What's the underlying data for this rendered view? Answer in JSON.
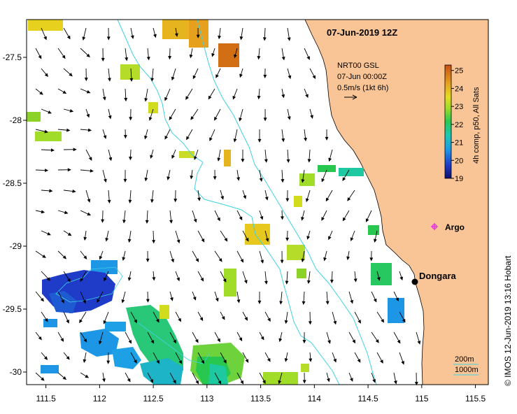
{
  "map": {
    "title": "07-Jun-2019 12Z",
    "lon_ticks": [
      "111.5",
      "112",
      "112.5",
      "113",
      "113.5",
      "114",
      "114.5",
      "115",
      "115.5"
    ],
    "lat_ticks": [
      "-27.5",
      "-28",
      "-28.5",
      "-29",
      "-29.5",
      "-30"
    ],
    "extent": {
      "lon_min": 111.32,
      "lon_max": 115.62,
      "lat_min": -30.1,
      "lat_max": -27.2
    },
    "colors": {
      "land": "#f9c596",
      "ocean": "#ffffff",
      "isobath": "#3fd2e0",
      "argo": "#e030e0"
    }
  },
  "annotation": {
    "line1": "NRT00 GSL",
    "line2": "07-Jun 00:00Z",
    "line3": "0.5m/s (1kt 6h)"
  },
  "colorbar": {
    "ticks": [
      "25",
      "24",
      "23",
      "22",
      "21",
      "20",
      "19"
    ],
    "label": "4h comp, p50, All Sats",
    "range": [
      19,
      25.3
    ]
  },
  "places": {
    "dongara": {
      "label": "Dongara",
      "lon": 114.92,
      "lat": -29.25
    },
    "argo": {
      "label": "Argo",
      "lon": 115.1,
      "lat": -28.8
    }
  },
  "legend": {
    "isobath_200": "200m",
    "isobath_1000": "1000m"
  },
  "credit": "© IMOS 12-Jun-2019 13:16 Hobart"
}
